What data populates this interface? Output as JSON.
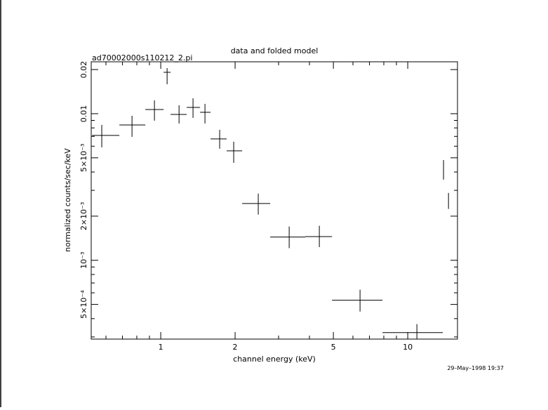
{
  "chart_data": {
    "type": "errorbar",
    "title": "data and folded model",
    "subtitle": "ad70002000s110212_2.pi",
    "xlabel": "channel energy (keV)",
    "ylabel": "normalized counts/sec/keV",
    "annotation": "29–May–1998 19:37",
    "log_x": true,
    "log_y": true,
    "color": "#000000",
    "xlim": [
      0.523,
      15.9
    ],
    "ylim": [
      0.00029,
      0.0226
    ],
    "xticks": [
      1,
      2,
      5,
      10
    ],
    "xminorticks": [
      0.6,
      0.7,
      0.8,
      0.9,
      3,
      4,
      6,
      7,
      8,
      9
    ],
    "yticks": [
      {
        "value": 0.0005,
        "label": "5×10⁻⁴"
      },
      {
        "value": 0.001,
        "label": "10⁻³"
      },
      {
        "value": 0.002,
        "label": "2×10⁻³"
      },
      {
        "value": 0.005,
        "label": "5×10⁻³"
      },
      0.01,
      0.02
    ],
    "yminorticks": [
      0.0003,
      0.0004,
      0.0006,
      0.0007,
      0.0008,
      0.0009,
      0.003,
      0.004,
      0.006,
      0.007,
      0.008,
      0.009
    ],
    "x": [
      0.577,
      0.765,
      0.943,
      1.061,
      1.186,
      1.351,
      1.51,
      1.732,
      1.974,
      2.482,
      3.311,
      4.386,
      6.41,
      10.89,
      13.96,
      14.62
    ],
    "x_low": [
      0.527,
      0.68,
      0.866,
      1.027,
      1.096,
      1.274,
      1.443,
      1.591,
      1.849,
      2.136,
      2.775,
      3.847,
      4.934,
      7.902,
      13.96,
      14.62
    ],
    "x_high": [
      0.68,
      0.866,
      1.027,
      1.096,
      1.274,
      1.443,
      1.591,
      1.849,
      2.136,
      2.775,
      3.847,
      4.934,
      7.902,
      13.87,
      13.96,
      14.62
    ],
    "values": [
      0.00711,
      0.00838,
      0.01068,
      0.01916,
      0.00989,
      0.01104,
      0.01022,
      0.00673,
      0.00558,
      0.00244,
      0.00144,
      0.00145,
      0.000534,
      0.000321,
      0.00423,
      0.00258
    ],
    "y_low": [
      0.00589,
      0.00695,
      0.00896,
      0.01588,
      0.00857,
      0.00936,
      0.00857,
      0.00577,
      0.00462,
      0.00205,
      0.00121,
      0.00123,
      0.000447,
      0.000291,
      0.00355,
      0.00224
    ],
    "y_high": [
      0.00838,
      0.00967,
      0.01233,
      0.02046,
      0.01141,
      0.01274,
      0.01167,
      0.00776,
      0.00644,
      0.00285,
      0.0017,
      0.00172,
      0.00063,
      0.000367,
      0.00483,
      0.00288
    ]
  }
}
